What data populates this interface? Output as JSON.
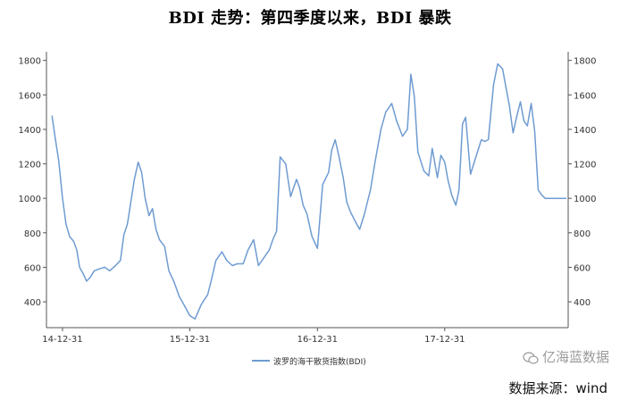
{
  "title": "BDI 走势：第四季度以来，BDI 暴跌",
  "watermark": "亿海蓝数据",
  "source": "数据来源：wind",
  "colors": {
    "line": "#6f9bd1",
    "axis": "#555555",
    "text": "#333333"
  },
  "icons": [
    "wechat-icon"
  ],
  "chart_data": {
    "type": "line",
    "title": "BDI 走势：第四季度以来，BDI 暴跌",
    "xlabel": "",
    "ylabel": "",
    "x_ticks": [
      "14-12-31",
      "15-12-31",
      "16-12-31",
      "17-12-31"
    ],
    "y_ticks": [
      400,
      600,
      800,
      1000,
      1200,
      1400,
      1600,
      1800
    ],
    "ylim": [
      250,
      1850
    ],
    "dual_y_axis": true,
    "grid": false,
    "legend_position": "bottom-center",
    "series": [
      {
        "name": "波罗的海干散货指数(BDI)",
        "x": [
          "2014-12-01",
          "2014-12-10",
          "2014-12-20",
          "2014-12-31",
          "2015-01-10",
          "2015-01-20",
          "2015-02-01",
          "2015-02-10",
          "2015-02-18",
          "2015-03-01",
          "2015-03-10",
          "2015-03-20",
          "2015-04-01",
          "2015-04-15",
          "2015-05-01",
          "2015-05-15",
          "2015-06-01",
          "2015-06-15",
          "2015-06-25",
          "2015-07-05",
          "2015-07-15",
          "2015-07-25",
          "2015-08-05",
          "2015-08-15",
          "2015-08-25",
          "2015-09-05",
          "2015-09-15",
          "2015-09-25",
          "2015-10-05",
          "2015-10-20",
          "2015-11-01",
          "2015-11-15",
          "2015-12-01",
          "2015-12-15",
          "2015-12-31",
          "2016-01-15",
          "2016-02-01",
          "2016-02-10",
          "2016-02-20",
          "2016-03-01",
          "2016-03-15",
          "2016-04-01",
          "2016-04-15",
          "2016-05-01",
          "2016-05-15",
          "2016-06-01",
          "2016-06-15",
          "2016-07-01",
          "2016-07-15",
          "2016-08-01",
          "2016-08-15",
          "2016-08-25",
          "2016-09-05",
          "2016-09-15",
          "2016-10-01",
          "2016-10-15",
          "2016-11-01",
          "2016-11-10",
          "2016-11-20",
          "2016-12-01",
          "2016-12-15",
          "2016-12-31",
          "2017-01-15",
          "2017-02-01",
          "2017-02-10",
          "2017-02-20",
          "2017-03-01",
          "2017-03-15",
          "2017-03-25",
          "2017-04-05",
          "2017-04-20",
          "2017-05-01",
          "2017-05-15",
          "2017-06-01",
          "2017-06-15",
          "2017-07-01",
          "2017-07-15",
          "2017-08-01",
          "2017-08-15",
          "2017-09-01",
          "2017-09-15",
          "2017-09-25",
          "2017-10-05",
          "2017-10-15",
          "2017-11-01",
          "2017-11-15",
          "2017-11-25",
          "2017-12-10",
          "2017-12-20",
          "2017-12-31",
          "2018-01-10",
          "2018-01-20",
          "2018-02-01",
          "2018-02-10",
          "2018-02-20",
          "2018-03-01",
          "2018-03-15",
          "2018-04-01",
          "2018-04-15",
          "2018-04-25",
          "2018-05-05",
          "2018-05-20",
          "2018-06-01",
          "2018-06-15",
          "2018-06-25",
          "2018-07-05",
          "2018-07-15",
          "2018-07-25",
          "2018-08-05",
          "2018-08-15",
          "2018-08-25",
          "2018-09-05",
          "2018-09-15",
          "2018-09-25",
          "2018-10-05",
          "2018-10-15",
          "2018-10-25",
          "2018-11-05",
          "2018-11-15",
          "2018-11-25",
          "2018-12-05",
          "2018-12-15"
        ],
        "values": [
          1480,
          1350,
          1220,
          1000,
          850,
          780,
          750,
          700,
          600,
          560,
          520,
          540,
          580,
          590,
          600,
          580,
          610,
          640,
          790,
          850,
          980,
          1110,
          1210,
          1150,
          1000,
          900,
          940,
          820,
          760,
          720,
          580,
          520,
          430,
          380,
          320,
          300,
          380,
          410,
          440,
          520,
          640,
          690,
          640,
          610,
          620,
          620,
          700,
          760,
          610,
          660,
          700,
          760,
          810,
          1240,
          1200,
          1010,
          1110,
          1060,
          960,
          910,
          780,
          710,
          1080,
          1150,
          1280,
          1340,
          1260,
          1120,
          980,
          920,
          860,
          820,
          910,
          1050,
          1220,
          1400,
          1500,
          1550,
          1450,
          1360,
          1400,
          1720,
          1590,
          1270,
          1160,
          1130,
          1290,
          1120,
          1250,
          1210,
          1100,
          1020,
          960,
          1050,
          1430,
          1470,
          1140,
          1250,
          1340,
          1330,
          1340,
          1660,
          1780,
          1750,
          1640,
          1530,
          1380,
          1470,
          1560,
          1450,
          1420,
          1550,
          1390,
          1050,
          1020,
          1000,
          1000,
          1000,
          1000,
          1000,
          1000,
          1000
        ]
      }
    ]
  }
}
